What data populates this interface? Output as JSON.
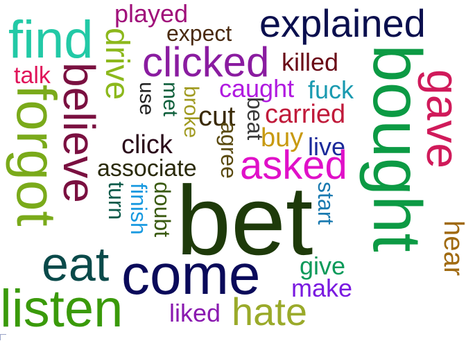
{
  "words": [
    {
      "text": "played",
      "color": "#a0107a"
    },
    {
      "text": "expect",
      "color": "#4a2a10"
    },
    {
      "text": "explained",
      "color": "#0a0f4e"
    },
    {
      "text": "find",
      "color": "#22c9a6"
    },
    {
      "text": "drive",
      "color": "#8cb81c"
    },
    {
      "text": "clicked",
      "color": "#8a1ca0"
    },
    {
      "text": "killed",
      "color": "#6a0a16"
    },
    {
      "text": "bought",
      "color": "#0c9a44"
    },
    {
      "text": "gave",
      "color": "#d01a5a"
    },
    {
      "text": "talk",
      "color": "#e0145a"
    },
    {
      "text": "believe",
      "color": "#7a1040"
    },
    {
      "text": "forgot",
      "color": "#7aaa1a"
    },
    {
      "text": "use",
      "color": "#242424"
    },
    {
      "text": "met",
      "color": "#0c5e3a"
    },
    {
      "text": "broke",
      "color": "#a09a20"
    },
    {
      "text": "caught",
      "color": "#b01ae0"
    },
    {
      "text": "fuck",
      "color": "#1a9ab0"
    },
    {
      "text": "cut",
      "color": "#3a2a06"
    },
    {
      "text": "beat",
      "color": "#3a3a3a"
    },
    {
      "text": "carried",
      "color": "#c01a3a"
    },
    {
      "text": "click",
      "color": "#2a0a1a"
    },
    {
      "text": "agree",
      "color": "#5a4a10"
    },
    {
      "text": "buy",
      "color": "#c89a10"
    },
    {
      "text": "live",
      "color": "#1a2a9a"
    },
    {
      "text": "associate",
      "color": "#2a2a0a"
    },
    {
      "text": "asked",
      "color": "#e010c8"
    },
    {
      "text": "turn",
      "color": "#0a5a4a"
    },
    {
      "text": "finish",
      "color": "#1a9ae0"
    },
    {
      "text": "doubt",
      "color": "#3a5a10"
    },
    {
      "text": "bet",
      "color": "#1e3a0a"
    },
    {
      "text": "start",
      "color": "#1a7ab0"
    },
    {
      "text": "hear",
      "color": "#a06a10"
    },
    {
      "text": "eat",
      "color": "#0a4a4a"
    },
    {
      "text": "come",
      "color": "#0a0a5a"
    },
    {
      "text": "give",
      "color": "#0c9a5a"
    },
    {
      "text": "make",
      "color": "#7a1ae0"
    },
    {
      "text": "listen",
      "color": "#3a9a0a"
    },
    {
      "text": "liked",
      "color": "#8a1ab0"
    },
    {
      "text": "hate",
      "color": "#9aaa2a"
    }
  ]
}
